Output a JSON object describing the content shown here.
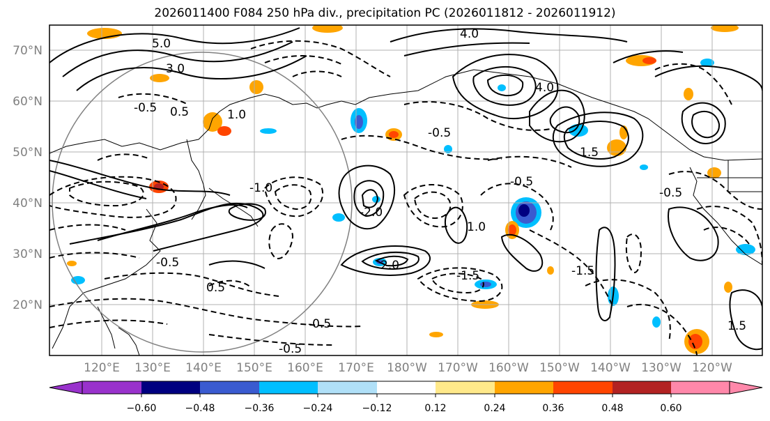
{
  "title": "2026011400 F084 250 hPa div., precipitation PC (2026011812 - 2026011912)",
  "lat_labels": [
    "70°N",
    "60°N",
    "50°N",
    "40°N",
    "30°N",
    "20°N"
  ],
  "lon_labels": [
    "120°E",
    "130°E",
    "140°E",
    "150°E",
    "160°E",
    "170°E",
    "180°W",
    "170°W",
    "160°W",
    "150°W",
    "140°W",
    "130°W",
    "120°W"
  ],
  "colorbar": {
    "colors": [
      "#9932cc",
      "#000080",
      "#3a5bd0",
      "#00bfff",
      "#b0e0f8",
      "#ffffff",
      "#ffe98a",
      "#ffa500",
      "#ff4500",
      "#b22222",
      "#ff88aa"
    ],
    "tick_labels": [
      "−0.60",
      "−0.48",
      "−0.36",
      "−0.24",
      "−0.12",
      "0.12",
      "0.24",
      "0.36",
      "0.48",
      "0.60"
    ]
  },
  "contour_labels": [
    "4.0",
    "5.0",
    "3.0",
    "1.0",
    "0.5",
    "-0.5",
    "-1.0",
    "-1.5",
    "-2.0",
    "2.0",
    "4.0",
    "1.5",
    "-0.5",
    "-0.5",
    "-0.5",
    "-0.5",
    "0.5",
    "1.0",
    "-0.5",
    "-0.5",
    "-1.5",
    "1.5"
  ]
}
